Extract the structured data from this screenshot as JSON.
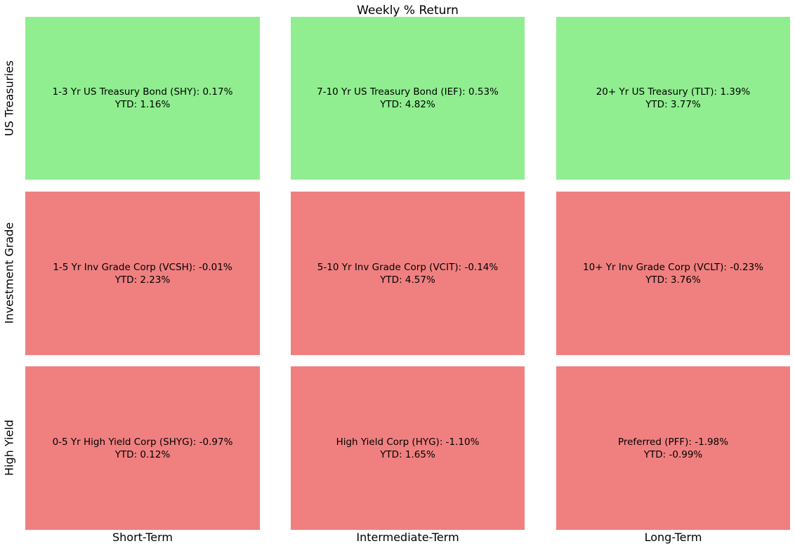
{
  "colors": {
    "positive_cell": "#90EE90",
    "negative_cell": "#F08080",
    "text": "#000000",
    "background": "#FFFFFF"
  },
  "chart_data": {
    "type": "heatmap",
    "title": "Weekly % Return",
    "rows": [
      "US Treasuries",
      "Investment Grade",
      "High Yield"
    ],
    "columns": [
      "Short-Term",
      "Intermediate-Term",
      "Long-Term"
    ],
    "legend_position": "none",
    "grid": false,
    "color_rule": "green if weekly return >= 0, red if negative",
    "cells": [
      {
        "row": 0,
        "col": 0,
        "name": "1-3 Yr US Treasury Bond",
        "ticker": "SHY",
        "weekly_pct": 0.17,
        "ytd_pct": 1.16,
        "color": "#90EE90",
        "line1": "1-3 Yr US Treasury Bond (SHY): 0.17%",
        "line2": "YTD: 1.16%"
      },
      {
        "row": 0,
        "col": 1,
        "name": "7-10 Yr US Treasury Bond",
        "ticker": "IEF",
        "weekly_pct": 0.53,
        "ytd_pct": 4.82,
        "color": "#90EE90",
        "line1": "7-10 Yr US Treasury Bond (IEF): 0.53%",
        "line2": "YTD: 4.82%"
      },
      {
        "row": 0,
        "col": 2,
        "name": "20+ Yr US Treasury",
        "ticker": "TLT",
        "weekly_pct": 1.39,
        "ytd_pct": 3.77,
        "color": "#90EE90",
        "line1": "20+ Yr US Treasury (TLT): 1.39%",
        "line2": "YTD: 3.77%"
      },
      {
        "row": 1,
        "col": 0,
        "name": "1-5 Yr Inv Grade Corp",
        "ticker": "VCSH",
        "weekly_pct": -0.01,
        "ytd_pct": 2.23,
        "color": "#F08080",
        "line1": "1-5 Yr Inv Grade Corp (VCSH): -0.01%",
        "line2": "YTD: 2.23%"
      },
      {
        "row": 1,
        "col": 1,
        "name": "5-10 Yr Inv Grade Corp",
        "ticker": "VCIT",
        "weekly_pct": -0.14,
        "ytd_pct": 4.57,
        "color": "#F08080",
        "line1": "5-10 Yr Inv Grade Corp (VCIT): -0.14%",
        "line2": "YTD: 4.57%"
      },
      {
        "row": 1,
        "col": 2,
        "name": "10+ Yr Inv Grade Corp",
        "ticker": "VCLT",
        "weekly_pct": -0.23,
        "ytd_pct": 3.76,
        "color": "#F08080",
        "line1": "10+ Yr Inv Grade Corp (VCLT): -0.23%",
        "line2": "YTD: 3.76%"
      },
      {
        "row": 2,
        "col": 0,
        "name": "0-5 Yr High Yield Corp",
        "ticker": "SHYG",
        "weekly_pct": -0.97,
        "ytd_pct": 0.12,
        "color": "#F08080",
        "line1": "0-5 Yr High Yield Corp (SHYG): -0.97%",
        "line2": "YTD: 0.12%"
      },
      {
        "row": 2,
        "col": 1,
        "name": "High Yield Corp",
        "ticker": "HYG",
        "weekly_pct": -1.1,
        "ytd_pct": 1.65,
        "color": "#F08080",
        "line1": "High Yield Corp (HYG): -1.10%",
        "line2": "YTD: 1.65%"
      },
      {
        "row": 2,
        "col": 2,
        "name": "Preferred",
        "ticker": "PFF",
        "weekly_pct": -1.98,
        "ytd_pct": -0.99,
        "color": "#F08080",
        "line1": "Preferred (PFF): -1.98%",
        "line2": "YTD: -0.99%"
      }
    ]
  }
}
